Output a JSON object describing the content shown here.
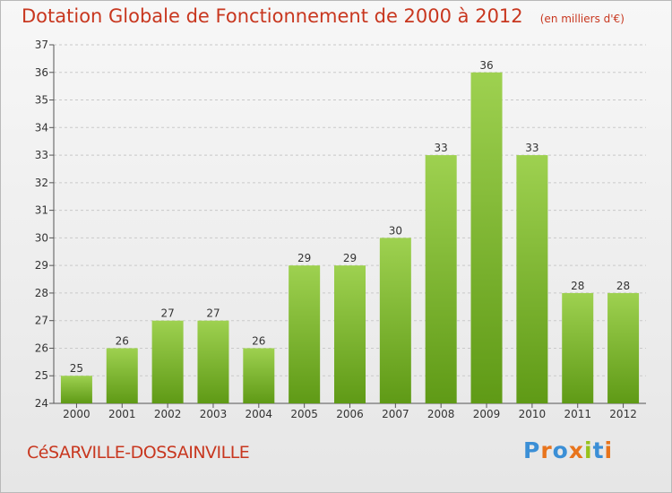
{
  "header": {
    "title": "Dotation Globale de Fonctionnement de 2000 à 2012",
    "unit": "(en milliers d'€)"
  },
  "footer": {
    "commune": "CéSARVILLE-DOSSAINVILLE",
    "logo_text": "Proxiti",
    "logo_colors": [
      "#3b8fd6",
      "#e8741c",
      "#3b8fd6",
      "#e8741c",
      "#97c21c",
      "#3b8fd6",
      "#e8741c"
    ]
  },
  "colors": {
    "title": "#c8371f",
    "bar_top": "#9ed150",
    "bar_bottom": "#5f9a16"
  },
  "chart_data": {
    "type": "bar",
    "title": "Dotation Globale de Fonctionnement de 2000 à 2012",
    "xlabel": "",
    "ylabel": "",
    "categories": [
      "2000",
      "2001",
      "2002",
      "2003",
      "2004",
      "2005",
      "2006",
      "2007",
      "2008",
      "2009",
      "2010",
      "2011",
      "2012"
    ],
    "values": [
      25,
      26,
      27,
      27,
      26,
      29,
      29,
      30,
      33,
      36,
      33,
      28,
      28
    ],
    "ylim": [
      24,
      37
    ],
    "yticks": [
      24,
      25,
      26,
      27,
      28,
      29,
      30,
      31,
      32,
      33,
      34,
      35,
      36,
      37
    ],
    "grid": true,
    "legend": "none"
  }
}
